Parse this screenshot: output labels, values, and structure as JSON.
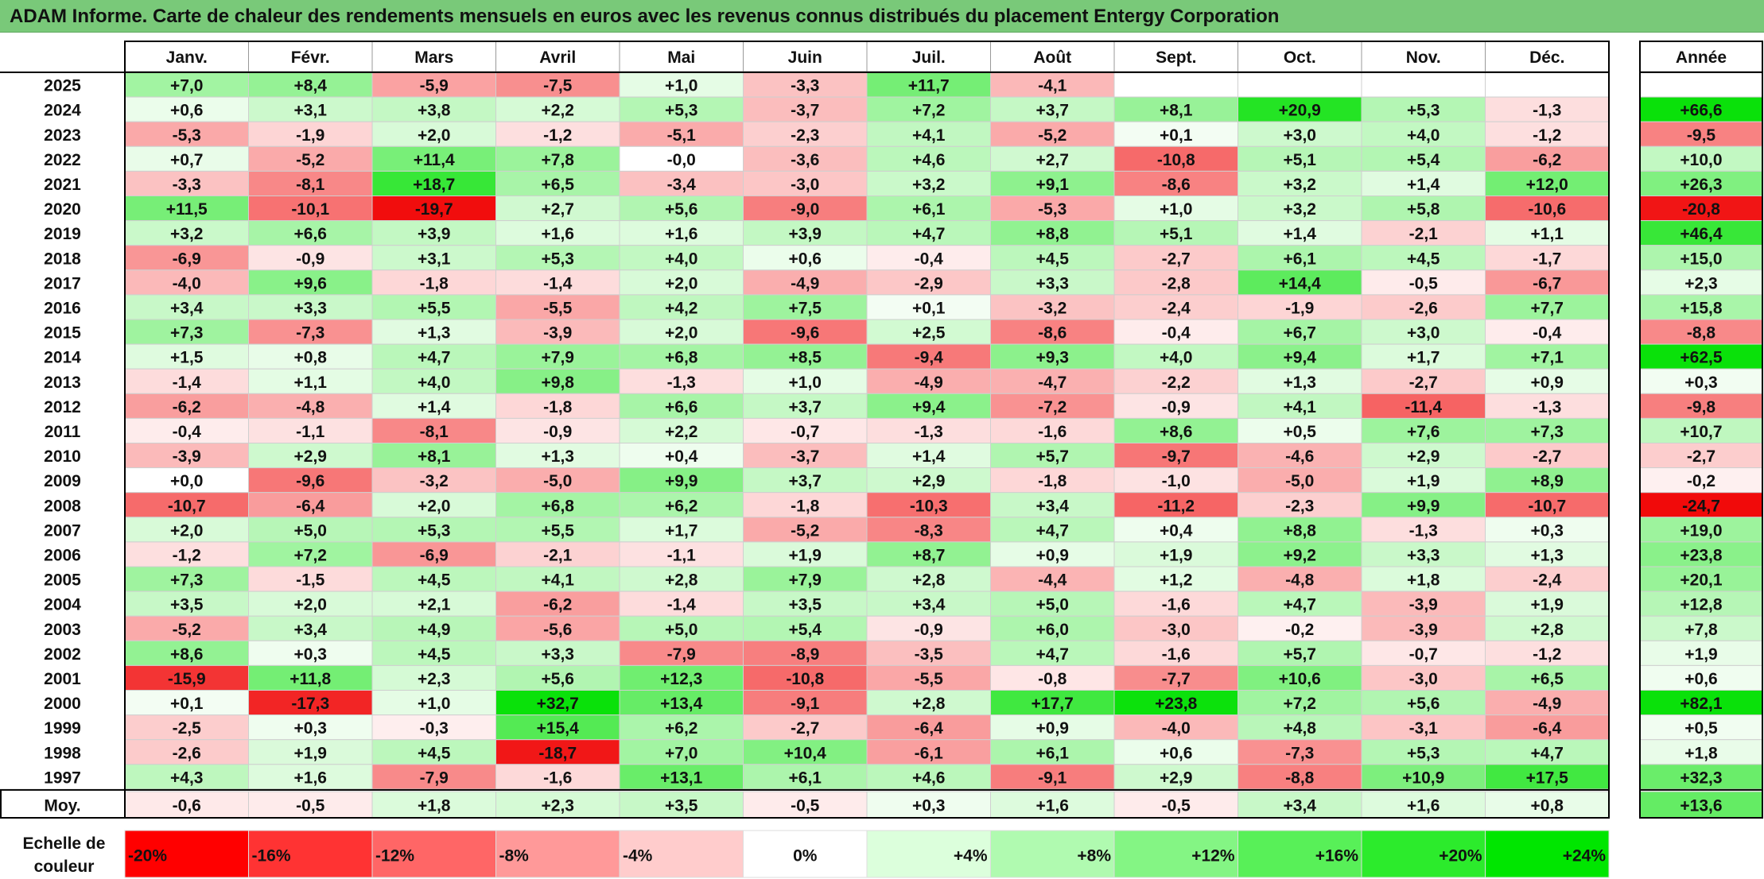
{
  "title": "ADAM Informe. Carte de chaleur des rendements mensuels en euros avec les revenus connus distribués du placement Entergy Corporation",
  "chart_data": {
    "type": "heatmap",
    "title": "ADAM Informe. Carte de chaleur des rendements mensuels en euros avec les revenus connus distribués du placement Entergy Corporation",
    "columns": [
      "Janv.",
      "Févr.",
      "Mars",
      "Avril",
      "Mai",
      "Juin",
      "Juil.",
      "Août",
      "Sept.",
      "Oct.",
      "Nov.",
      "Déc."
    ],
    "year_header": "Année",
    "rows": [
      {
        "year": "2025",
        "values": [
          "+7,0",
          "+8,4",
          "-5,9",
          "-7,5",
          "+1,0",
          "-3,3",
          "+11,7",
          "-4,1",
          "",
          "",
          "",
          ""
        ],
        "annual": ""
      },
      {
        "year": "2024",
        "values": [
          "+0,6",
          "+3,1",
          "+3,8",
          "+2,2",
          "+5,3",
          "-3,7",
          "+7,2",
          "+3,7",
          "+8,1",
          "+20,9",
          "+5,3",
          "-1,3"
        ],
        "annual": "+66,6"
      },
      {
        "year": "2023",
        "values": [
          "-5,3",
          "-1,9",
          "+2,0",
          "-1,2",
          "-5,1",
          "-2,3",
          "+4,1",
          "-5,2",
          "+0,1",
          "+3,0",
          "+4,0",
          "-1,2"
        ],
        "annual": "-9,5"
      },
      {
        "year": "2022",
        "values": [
          "+0,7",
          "-5,2",
          "+11,4",
          "+7,8",
          "-0,0",
          "-3,6",
          "+4,6",
          "+2,7",
          "-10,8",
          "+5,1",
          "+5,4",
          "-6,2"
        ],
        "annual": "+10,0"
      },
      {
        "year": "2021",
        "values": [
          "-3,3",
          "-8,1",
          "+18,7",
          "+6,5",
          "-3,4",
          "-3,0",
          "+3,2",
          "+9,1",
          "-8,6",
          "+3,2",
          "+1,4",
          "+12,0"
        ],
        "annual": "+26,3"
      },
      {
        "year": "2020",
        "values": [
          "+11,5",
          "-10,1",
          "-19,7",
          "+2,7",
          "+5,6",
          "-9,0",
          "+6,1",
          "-5,3",
          "+1,0",
          "+3,2",
          "+5,8",
          "-10,6"
        ],
        "annual": "-20,8"
      },
      {
        "year": "2019",
        "values": [
          "+3,2",
          "+6,6",
          "+3,9",
          "+1,6",
          "+1,6",
          "+3,9",
          "+4,7",
          "+8,8",
          "+5,1",
          "+1,4",
          "-2,1",
          "+1,1"
        ],
        "annual": "+46,4"
      },
      {
        "year": "2018",
        "values": [
          "-6,9",
          "-0,9",
          "+3,1",
          "+5,3",
          "+4,0",
          "+0,6",
          "-0,4",
          "+4,5",
          "-2,7",
          "+6,1",
          "+4,5",
          "-1,7"
        ],
        "annual": "+15,0"
      },
      {
        "year": "2017",
        "values": [
          "-4,0",
          "+9,6",
          "-1,8",
          "-1,4",
          "+2,0",
          "-4,9",
          "-2,9",
          "+3,3",
          "-2,8",
          "+14,4",
          "-0,5",
          "-6,7"
        ],
        "annual": "+2,3"
      },
      {
        "year": "2016",
        "values": [
          "+3,4",
          "+3,3",
          "+5,5",
          "-5,5",
          "+4,2",
          "+7,5",
          "+0,1",
          "-3,2",
          "-2,4",
          "-1,9",
          "-2,6",
          "+7,7"
        ],
        "annual": "+15,8"
      },
      {
        "year": "2015",
        "values": [
          "+7,3",
          "-7,3",
          "+1,3",
          "-3,9",
          "+2,0",
          "-9,6",
          "+2,5",
          "-8,6",
          "-0,4",
          "+6,7",
          "+3,0",
          "-0,4"
        ],
        "annual": "-8,8"
      },
      {
        "year": "2014",
        "values": [
          "+1,5",
          "+0,8",
          "+4,7",
          "+7,9",
          "+6,8",
          "+8,5",
          "-9,4",
          "+9,3",
          "+4,0",
          "+9,4",
          "+1,7",
          "+7,1"
        ],
        "annual": "+62,5"
      },
      {
        "year": "2013",
        "values": [
          "-1,4",
          "+1,1",
          "+4,0",
          "+9,8",
          "-1,3",
          "+1,0",
          "-4,9",
          "-4,7",
          "-2,2",
          "+1,3",
          "-2,7",
          "+0,9"
        ],
        "annual": "+0,3"
      },
      {
        "year": "2012",
        "values": [
          "-6,2",
          "-4,8",
          "+1,4",
          "-1,8",
          "+6,6",
          "+3,7",
          "+9,4",
          "-7,2",
          "-0,9",
          "+4,1",
          "-11,4",
          "-1,3"
        ],
        "annual": "-9,8"
      },
      {
        "year": "2011",
        "values": [
          "-0,4",
          "-1,1",
          "-8,1",
          "-0,9",
          "+2,2",
          "-0,7",
          "-1,3",
          "-1,6",
          "+8,6",
          "+0,5",
          "+7,6",
          "+7,3"
        ],
        "annual": "+10,7"
      },
      {
        "year": "2010",
        "values": [
          "-3,9",
          "+2,9",
          "+8,1",
          "+1,3",
          "+0,4",
          "-3,7",
          "+1,4",
          "+5,7",
          "-9,7",
          "-4,6",
          "+2,9",
          "-2,7"
        ],
        "annual": "-2,7"
      },
      {
        "year": "2009",
        "values": [
          "+0,0",
          "-9,6",
          "-3,2",
          "-5,0",
          "+9,9",
          "+3,7",
          "+2,9",
          "-1,8",
          "-1,0",
          "-5,0",
          "+1,9",
          "+8,9"
        ],
        "annual": "-0,2"
      },
      {
        "year": "2008",
        "values": [
          "-10,7",
          "-6,4",
          "+2,0",
          "+6,8",
          "+6,2",
          "-1,8",
          "-10,3",
          "+3,4",
          "-11,2",
          "-2,3",
          "+9,9",
          "-10,7"
        ],
        "annual": "-24,7"
      },
      {
        "year": "2007",
        "values": [
          "+2,0",
          "+5,0",
          "+5,3",
          "+5,5",
          "+1,7",
          "-5,2",
          "-8,3",
          "+4,7",
          "+0,4",
          "+8,8",
          "-1,3",
          "+0,3"
        ],
        "annual": "+19,0"
      },
      {
        "year": "2006",
        "values": [
          "-1,2",
          "+7,2",
          "-6,9",
          "-2,1",
          "-1,1",
          "+1,9",
          "+8,7",
          "+0,9",
          "+1,9",
          "+9,2",
          "+3,3",
          "+1,3"
        ],
        "annual": "+23,8"
      },
      {
        "year": "2005",
        "values": [
          "+7,3",
          "-1,5",
          "+4,5",
          "+4,1",
          "+2,8",
          "+7,9",
          "+2,8",
          "-4,4",
          "+1,2",
          "-4,8",
          "+1,8",
          "-2,4"
        ],
        "annual": "+20,1"
      },
      {
        "year": "2004",
        "values": [
          "+3,5",
          "+2,0",
          "+2,1",
          "-6,2",
          "-1,4",
          "+3,5",
          "+3,4",
          "+5,0",
          "-1,6",
          "+4,7",
          "-3,9",
          "+1,9"
        ],
        "annual": "+12,8"
      },
      {
        "year": "2003",
        "values": [
          "-5,2",
          "+3,4",
          "+4,9",
          "-5,6",
          "+5,0",
          "+5,4",
          "-0,9",
          "+6,0",
          "-3,0",
          "-0,2",
          "-3,9",
          "+2,8"
        ],
        "annual": "+7,8"
      },
      {
        "year": "2002",
        "values": [
          "+8,6",
          "+0,3",
          "+4,5",
          "+3,3",
          "-7,9",
          "-8,9",
          "-3,5",
          "+4,7",
          "-1,6",
          "+5,7",
          "-0,7",
          "-1,2"
        ],
        "annual": "+1,9"
      },
      {
        "year": "2001",
        "values": [
          "-15,9",
          "+11,8",
          "+2,3",
          "+5,6",
          "+12,3",
          "-10,8",
          "-5,5",
          "-0,8",
          "-7,7",
          "+10,6",
          "-3,0",
          "+6,5"
        ],
        "annual": "+0,6"
      },
      {
        "year": "2000",
        "values": [
          "+0,1",
          "-17,3",
          "+1,0",
          "+32,7",
          "+13,4",
          "-9,1",
          "+2,8",
          "+17,7",
          "+23,8",
          "+7,2",
          "+5,6",
          "-4,9"
        ],
        "annual": "+82,1"
      },
      {
        "year": "1999",
        "values": [
          "-2,5",
          "+0,3",
          "-0,3",
          "+15,4",
          "+6,2",
          "-2,7",
          "-6,4",
          "+0,9",
          "-4,0",
          "+4,8",
          "-3,1",
          "-6,4"
        ],
        "annual": "+0,5"
      },
      {
        "year": "1998",
        "values": [
          "-2,6",
          "+1,9",
          "+4,5",
          "-18,7",
          "+7,0",
          "+10,4",
          "-6,1",
          "+6,1",
          "+0,6",
          "-7,3",
          "+5,3",
          "+4,7"
        ],
        "annual": "+1,8"
      },
      {
        "year": "1997",
        "values": [
          "+4,3",
          "+1,6",
          "-7,9",
          "-1,6",
          "+13,1",
          "+6,1",
          "+4,6",
          "-9,1",
          "+2,9",
          "-8,8",
          "+10,9",
          "+17,5"
        ],
        "annual": "+32,3"
      }
    ],
    "average": {
      "label": "Moy.",
      "values": [
        "-0,6",
        "-0,5",
        "+1,8",
        "+2,3",
        "+3,5",
        "-0,5",
        "+0,3",
        "+1,6",
        "-0,5",
        "+3,4",
        "+1,6",
        "+0,8"
      ],
      "annual": "+13,6"
    },
    "scale": {
      "label_line1": "Echelle de",
      "label_line2": "couleur",
      "stops": [
        "-20%",
        "-16%",
        "-12%",
        "-8%",
        "-4%",
        "0%",
        "+4%",
        "+8%",
        "+12%",
        "+16%",
        "+20%",
        "+24%"
      ]
    },
    "colors": {
      "strong_red": "#ff0000",
      "white": "#ffffff",
      "strong_green": "#00e000",
      "title_bar": "#79c979",
      "grid": "#c8c8c8"
    }
  }
}
